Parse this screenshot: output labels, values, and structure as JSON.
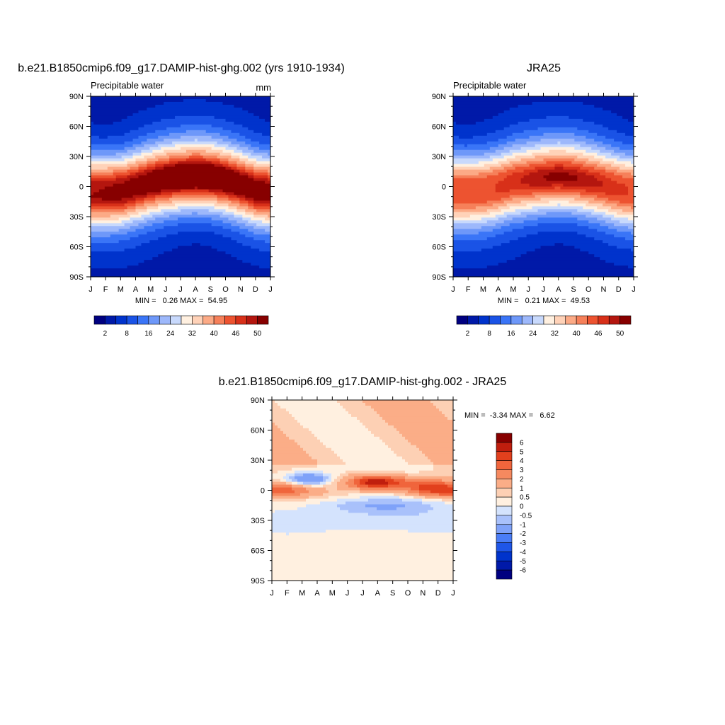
{
  "colors": {
    "abs_scale": [
      "#000080",
      "#0019a8",
      "#0033cc",
      "#1a53e6",
      "#3a75f7",
      "#6e98f9",
      "#9db8fb",
      "#c8d9fc",
      "#fff0e0",
      "#ffd2b8",
      "#fcaa86",
      "#f6805a",
      "#ed5330",
      "#d83019",
      "#b4160f",
      "#870000"
    ],
    "diff_scale": [
      "#000080",
      "#0019a8",
      "#0033cc",
      "#1f56e8",
      "#4a7df7",
      "#7fa2f9",
      "#a9c1fb",
      "#d4e3fd",
      "#fff0e0",
      "#fdd0b4",
      "#fbad87",
      "#f6895f",
      "#f0653c",
      "#e2401d",
      "#c01e0e",
      "#870000"
    ]
  },
  "chart_data": [
    {
      "type": "heatmap",
      "title": "b.e21.B1850cmip6.f09_g17.DAMIP-hist-ghg.002 (yrs 1910-1934)",
      "subtitle": "Precipitable water",
      "units": "mm",
      "x_tick_labels": [
        "J",
        "F",
        "M",
        "A",
        "M",
        "J",
        "J",
        "A",
        "S",
        "O",
        "N",
        "D",
        "J"
      ],
      "y_tick_labels": [
        "90N",
        "60N",
        "30N",
        "0",
        "30S",
        "60S",
        "90S"
      ],
      "ylim": [
        -90,
        90
      ],
      "stats_text": "MIN =   0.26 MAX =  54.95",
      "min": 0.26,
      "max": 54.95,
      "peak_lat_by_month": [
        -5,
        -5,
        -4,
        0,
        4,
        7,
        9,
        10,
        9,
        6,
        2,
        -3,
        -5
      ],
      "colorbar": {
        "levels": [
          2,
          5,
          8,
          12,
          16,
          20,
          24,
          28,
          32,
          36,
          40,
          43,
          46,
          48,
          50
        ],
        "labels": [
          "2",
          "8",
          "16",
          "24",
          "32",
          "40",
          "46",
          "50"
        ]
      }
    },
    {
      "type": "heatmap",
      "title": "JRA25",
      "subtitle": "Precipitable water",
      "x_tick_labels": [
        "J",
        "F",
        "M",
        "A",
        "M",
        "J",
        "J",
        "A",
        "S",
        "O",
        "N",
        "D",
        "J"
      ],
      "y_tick_labels": [
        "90N",
        "60N",
        "30N",
        "0",
        "30S",
        "60S",
        "90S"
      ],
      "ylim": [
        -90,
        90
      ],
      "stats_text": "MIN =   0.21 MAX =  49.53",
      "min": 0.21,
      "max": 49.53,
      "peak_lat_by_month": [
        -4,
        -4,
        -3,
        0,
        4,
        6,
        8,
        9,
        8,
        5,
        2,
        -2,
        -4
      ],
      "colorbar": {
        "levels": [
          2,
          5,
          8,
          12,
          16,
          20,
          24,
          28,
          32,
          36,
          40,
          43,
          46,
          48,
          50
        ],
        "labels": [
          "2",
          "8",
          "16",
          "24",
          "32",
          "40",
          "46",
          "50"
        ]
      }
    },
    {
      "type": "heatmap",
      "title": "b.e21.B1850cmip6.f09_g17.DAMIP-hist-ghg.002 - JRA25",
      "x_tick_labels": [
        "J",
        "F",
        "M",
        "A",
        "M",
        "J",
        "J",
        "A",
        "S",
        "O",
        "N",
        "D",
        "J"
      ],
      "y_tick_labels": [
        "90N",
        "60N",
        "30N",
        "0",
        "30S",
        "60S",
        "90S"
      ],
      "ylim": [
        -90,
        90
      ],
      "stats_text": "MIN =  -3.34 MAX =   6.62",
      "min": -3.34,
      "max": 6.62,
      "colorbar": {
        "levels": [
          -6,
          -5,
          -4,
          -3,
          -2,
          -1,
          -0.5,
          0,
          0.5,
          1,
          2,
          3,
          4,
          5,
          6
        ],
        "labels": [
          "6",
          "5",
          "4",
          "3",
          "2",
          "1",
          "0.5",
          "0",
          "-0.5",
          "-1",
          "-2",
          "-3",
          "-4",
          "-5",
          "-6"
        ]
      }
    }
  ]
}
